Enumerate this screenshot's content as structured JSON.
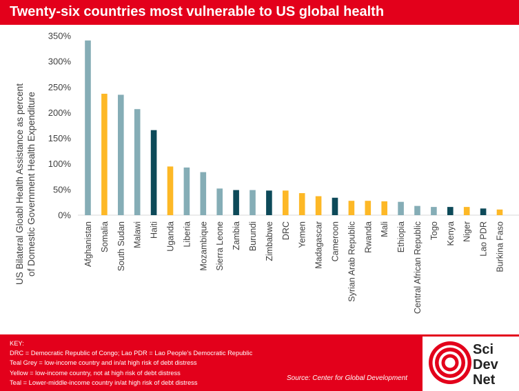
{
  "header": {
    "title": "Twenty-six countries most vulnerable to US global health"
  },
  "colors": {
    "teal_grey": "#85adb6",
    "yellow": "#fdb826",
    "teal": "#0d4a59",
    "brand_red": "#e3001b"
  },
  "chart_data": {
    "type": "bar",
    "title": "Twenty-six countries most vulnerable to US global health",
    "xlabel": "",
    "ylabel": "US Bilateral Gloabl Health Assistance as percent of Domestic Government Health Expenditure",
    "ylim": [
      0,
      350
    ],
    "yticks": [
      0,
      50,
      100,
      150,
      200,
      250,
      300,
      350
    ],
    "ytick_labels": [
      "0%",
      "50%",
      "100%",
      "150%",
      "200%",
      "250%",
      "300%",
      "350%"
    ],
    "grid": false,
    "categories": [
      "Afghanistan",
      "Somalia",
      "South Sudan",
      "Malawi",
      "Haiti",
      "Uganda",
      "Liberia",
      "Mozambique",
      "Sierra Leone",
      "Zambia",
      "Burundi",
      "Zimbabwe",
      "DRC",
      "Yemen",
      "Madagascar",
      "Cameroon",
      "Syrian Arab Republic",
      "Rwanda",
      "Mali",
      "Ethiopia",
      "Central African Republic",
      "Togo",
      "Kenya",
      "Niger",
      "Lao PDR",
      "Burkina Faso"
    ],
    "values": [
      341,
      237,
      235,
      207,
      166,
      95,
      93,
      84,
      52,
      49,
      49,
      48,
      48,
      43,
      37,
      34,
      28,
      28,
      27,
      26,
      18,
      16,
      16,
      16,
      13,
      11
    ],
    "groups": [
      "teal_grey",
      "yellow",
      "teal_grey",
      "teal_grey",
      "teal",
      "yellow",
      "teal_grey",
      "teal_grey",
      "teal_grey",
      "teal",
      "teal_grey",
      "teal",
      "yellow",
      "yellow",
      "yellow",
      "teal",
      "yellow",
      "yellow",
      "yellow",
      "teal_grey",
      "teal_grey",
      "teal_grey",
      "teal",
      "yellow",
      "teal",
      "yellow"
    ]
  },
  "footer": {
    "key_title": "KEY:",
    "key_lines": [
      "DRC = Democratic Republic of Congo; Lao PDR = Lao People’s Democratic Republic",
      "Teal Grey = low-income country and in/at high risk of debt distress",
      "Yellow = low-income country, not at high risk of debt distress",
      "Teal = Lower-middle-income country in/at high risk of debt distress"
    ],
    "source": "Source: Center for Global Development"
  },
  "logo": {
    "line1": "Sci",
    "line2": "Dev",
    "line3": "Net"
  }
}
